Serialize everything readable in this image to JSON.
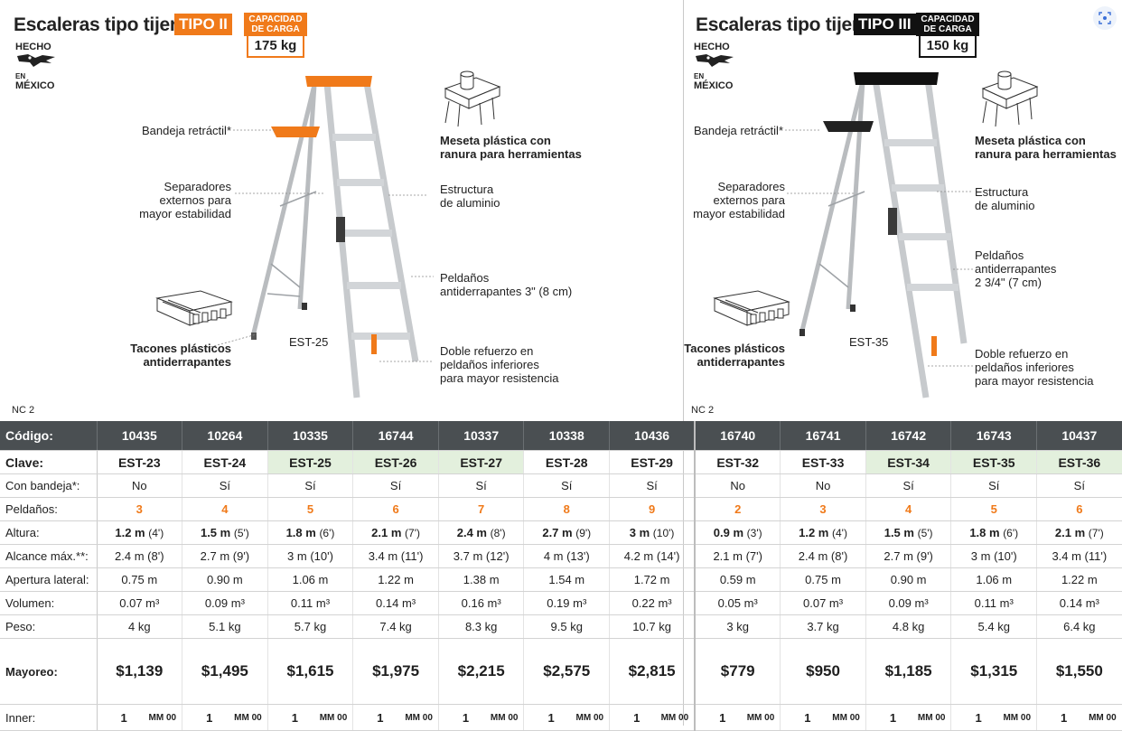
{
  "left": {
    "title": "Escaleras tipo tijera",
    "tipo": "TIPO II",
    "capacity_label_1": "CAPACIDAD",
    "capacity_label_2": "DE CARGA",
    "capacity_value": "175 kg",
    "made_in_1": "HECHO",
    "made_in_en": "EN",
    "made_in_2": "MÉXICO",
    "labels": {
      "bandeja": "Bandeja retráctil*",
      "separadores_1": "Separadores",
      "separadores_2": "externos para",
      "separadores_3": "mayor estabilidad",
      "meseta_1": "Meseta plástica con",
      "meseta_2": "ranura para herramientas",
      "estructura_1": "Estructura",
      "estructura_2": "de aluminio",
      "peldanos_1": "Peldaños",
      "peldanos_2": "antiderrapantes 3\" (8 cm)",
      "tacones_1": "Tacones plásticos",
      "tacones_2": "antiderrapantes",
      "doble_1": "Doble refuerzo en",
      "doble_2": "peldaños inferiores",
      "doble_3": "para mayor resistencia"
    },
    "model": "EST-25",
    "nc": "NC 2",
    "accent": "#f07a1a"
  },
  "right": {
    "title": "Escaleras tipo tijera",
    "tipo": "TIPO III",
    "capacity_label_1": "CAPACIDAD",
    "capacity_label_2": "DE CARGA",
    "capacity_value": "150 kg",
    "made_in_1": "HECHO",
    "made_in_en": "EN",
    "made_in_2": "MÉXICO",
    "labels": {
      "bandeja": "Bandeja retráctil*",
      "separadores_1": "Separadores",
      "separadores_2": "externos para",
      "separadores_3": "mayor estabilidad",
      "meseta_1": "Meseta plástica con",
      "meseta_2": "ranura para herramientas",
      "estructura_1": "Estructura",
      "estructura_2": "de aluminio",
      "peldanos_1": "Peldaños",
      "peldanos_2": "antiderrapantes",
      "peldanos_3": "2 3/4\" (7 cm)",
      "tacones_1": "Tacones plásticos",
      "tacones_2": "antiderrapantes",
      "doble_1": "Doble refuerzo en",
      "doble_2": "peldaños inferiores",
      "doble_3": "para mayor resistencia"
    },
    "model": "EST-35",
    "nc": "NC 2",
    "accent": "#111111"
  },
  "table": {
    "row_labels": {
      "codigo": "Código:",
      "clave": "Clave:",
      "bandeja": "Con bandeja*:",
      "peldanos": "Peldaños:",
      "altura": "Altura:",
      "alcance": "Alcance máx.**:",
      "apertura": "Apertura lateral:",
      "volumen": "Volumen:",
      "peso": "Peso:",
      "mayoreo": "Mayoreo:",
      "inner": "Inner:"
    },
    "columns": [
      {
        "codigo": "10435",
        "clave": "EST-23",
        "bandeja": "No",
        "peldanos": "3",
        "altura_m": "1.2 m",
        "altura_ft": "(4')",
        "alcance": "2.4 m (8')",
        "apertura": "0.75 m",
        "volumen": "0.07 m³",
        "peso": "4 kg",
        "mayoreo": "$1,139",
        "inner_q": "1",
        "inner_u": "MM 00",
        "hl": false
      },
      {
        "codigo": "10264",
        "clave": "EST-24",
        "bandeja": "Sí",
        "peldanos": "4",
        "altura_m": "1.5 m",
        "altura_ft": "(5')",
        "alcance": "2.7 m (9')",
        "apertura": "0.90 m",
        "volumen": "0.09 m³",
        "peso": "5.1 kg",
        "mayoreo": "$1,495",
        "inner_q": "1",
        "inner_u": "MM 00",
        "hl": false
      },
      {
        "codigo": "10335",
        "clave": "EST-25",
        "bandeja": "Sí",
        "peldanos": "5",
        "altura_m": "1.8 m",
        "altura_ft": "(6')",
        "alcance": "3 m (10')",
        "apertura": "1.06 m",
        "volumen": "0.11 m³",
        "peso": "5.7 kg",
        "mayoreo": "$1,615",
        "inner_q": "1",
        "inner_u": "MM 00",
        "hl": true
      },
      {
        "codigo": "16744",
        "clave": "EST-26",
        "bandeja": "Sí",
        "peldanos": "6",
        "altura_m": "2.1 m",
        "altura_ft": "(7')",
        "alcance": "3.4 m (11')",
        "apertura": "1.22 m",
        "volumen": "0.14 m³",
        "peso": "7.4 kg",
        "mayoreo": "$1,975",
        "inner_q": "1",
        "inner_u": "MM 00",
        "hl": true
      },
      {
        "codigo": "10337",
        "clave": "EST-27",
        "bandeja": "Sí",
        "peldanos": "7",
        "altura_m": "2.4 m",
        "altura_ft": "(8')",
        "alcance": "3.7 m (12')",
        "apertura": "1.38 m",
        "volumen": "0.16 m³",
        "peso": "8.3 kg",
        "mayoreo": "$2,215",
        "inner_q": "1",
        "inner_u": "MM 00",
        "hl": true
      },
      {
        "codigo": "10338",
        "clave": "EST-28",
        "bandeja": "Sí",
        "peldanos": "8",
        "altura_m": "2.7 m",
        "altura_ft": "(9')",
        "alcance": "4 m (13')",
        "apertura": "1.54 m",
        "volumen": "0.19 m³",
        "peso": "9.5 kg",
        "mayoreo": "$2,575",
        "inner_q": "1",
        "inner_u": "MM 00",
        "hl": false
      },
      {
        "codigo": "10436",
        "clave": "EST-29",
        "bandeja": "Sí",
        "peldanos": "9",
        "altura_m": "3 m",
        "altura_ft": "(10')",
        "alcance": "4.2 m (14')",
        "apertura": "1.72 m",
        "volumen": "0.22 m³",
        "peso": "10.7 kg",
        "mayoreo": "$2,815",
        "inner_q": "1",
        "inner_u": "MM 00",
        "hl": false
      },
      {
        "codigo": "16740",
        "clave": "EST-32",
        "bandeja": "No",
        "peldanos": "2",
        "altura_m": "0.9 m",
        "altura_ft": "(3')",
        "alcance": "2.1 m (7')",
        "apertura": "0.59 m",
        "volumen": "0.05 m³",
        "peso": "3 kg",
        "mayoreo": "$779",
        "inner_q": "1",
        "inner_u": "MM 00",
        "hl": false
      },
      {
        "codigo": "16741",
        "clave": "EST-33",
        "bandeja": "No",
        "peldanos": "3",
        "altura_m": "1.2 m",
        "altura_ft": "(4')",
        "alcance": "2.4 m (8')",
        "apertura": "0.75 m",
        "volumen": "0.07 m³",
        "peso": "3.7 kg",
        "mayoreo": "$950",
        "inner_q": "1",
        "inner_u": "MM 00",
        "hl": false
      },
      {
        "codigo": "16742",
        "clave": "EST-34",
        "bandeja": "Sí",
        "peldanos": "4",
        "altura_m": "1.5 m",
        "altura_ft": "(5')",
        "alcance": "2.7 m (9')",
        "apertura": "0.90 m",
        "volumen": "0.09 m³",
        "peso": "4.8 kg",
        "mayoreo": "$1,185",
        "inner_q": "1",
        "inner_u": "MM 00",
        "hl": true
      },
      {
        "codigo": "16743",
        "clave": "EST-35",
        "bandeja": "Sí",
        "peldanos": "5",
        "altura_m": "1.8 m",
        "altura_ft": "(6')",
        "alcance": "3 m (10')",
        "apertura": "1.06 m",
        "volumen": "0.11 m³",
        "peso": "5.4 kg",
        "mayoreo": "$1,315",
        "inner_q": "1",
        "inner_u": "MM 00",
        "hl": true
      },
      {
        "codigo": "10437",
        "clave": "EST-36",
        "bandeja": "Sí",
        "peldanos": "6",
        "altura_m": "2.1 m",
        "altura_ft": "(7')",
        "alcance": "3.4 m (11')",
        "apertura": "1.22 m",
        "volumen": "0.14 m³",
        "peso": "6.4 kg",
        "mayoreo": "$1,550",
        "inner_q": "1",
        "inner_u": "MM 00",
        "hl": true
      }
    ]
  }
}
